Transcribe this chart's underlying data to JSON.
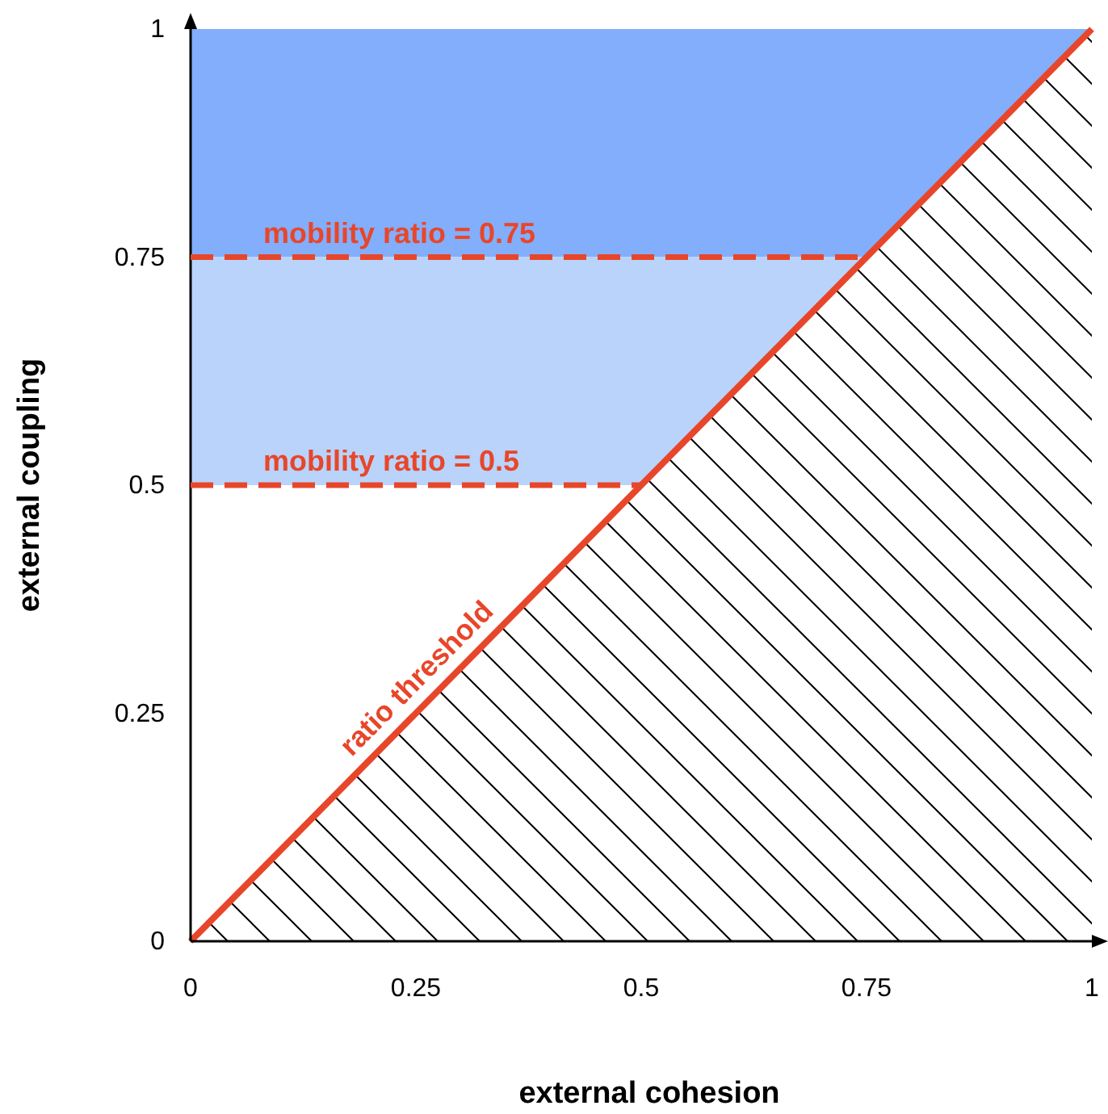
{
  "chart_data": {
    "type": "line",
    "xlabel": "external cohesion",
    "ylabel": "external coupling",
    "xlim": [
      0,
      1
    ],
    "ylim": [
      0,
      1
    ],
    "xticks": [
      0,
      0.25,
      0.5,
      0.75,
      1
    ],
    "yticks": [
      0,
      0.25,
      0.5,
      0.75,
      1
    ],
    "bands": [
      {
        "axis": "y",
        "from": 0.75,
        "to": 1,
        "color": "#82aefc"
      },
      {
        "axis": "y",
        "from": 0.5,
        "to": 0.75,
        "color": "#b9d3fb"
      }
    ],
    "series": [
      {
        "name": "mobility ratio = 0.75",
        "color": "#e8462a",
        "line_style": "dashed",
        "x": [
          0,
          0.75
        ],
        "values": [
          0.75,
          0.75
        ]
      },
      {
        "name": "mobility ratio = 0.5",
        "color": "#e8462a",
        "line_style": "dashed",
        "x": [
          0,
          0.5
        ],
        "values": [
          0.5,
          0.5
        ]
      },
      {
        "type": "area",
        "name": "ratio threshold",
        "color": "#e8462a",
        "line_style": "solid",
        "x": [
          0,
          1
        ],
        "values": [
          0,
          1
        ]
      }
    ]
  }
}
